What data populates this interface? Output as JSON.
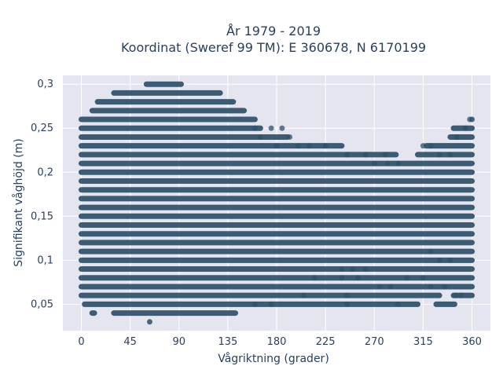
{
  "chart_data": {
    "type": "scatter",
    "title_line1": "År 1979 - 2019",
    "title_line2": "Koordinat (Sweref 99 TM): E 360678, N 6170199",
    "xlabel": "Vågriktning (grader)",
    "ylabel": "Signifikant våghöjd (m)",
    "xlim": [
      -17,
      377
    ],
    "ylim": [
      0.02,
      0.31
    ],
    "x_ticks": [
      0,
      45,
      90,
      135,
      180,
      225,
      270,
      315,
      360
    ],
    "x_tick_labels": [
      "0",
      "45",
      "90",
      "135",
      "180",
      "225",
      "270",
      "315",
      "360"
    ],
    "y_ticks": [
      0.05,
      0.1,
      0.15,
      0.2,
      0.25,
      0.3
    ],
    "y_tick_labels": [
      "0,05",
      "0,1",
      "0,15",
      "0,2",
      "0,25",
      "0,3"
    ],
    "grid": true,
    "legend": "none",
    "colors": {
      "marker": "#2e5068",
      "plot_bg": "#e5e5f0",
      "grid": "#ffffff",
      "text": "#2a3f5f"
    },
    "bands": [
      {
        "y": 0.03,
        "ranges": [
          [
            63,
            63
          ]
        ]
      },
      {
        "y": 0.04,
        "ranges": [
          [
            10,
            12
          ],
          [
            30,
            142
          ]
        ]
      },
      {
        "y": 0.05,
        "ranges": [
          [
            3,
            310
          ],
          [
            327,
            344
          ]
        ]
      },
      {
        "y": 0.06,
        "ranges": [
          [
            0,
            330
          ],
          [
            343,
            360
          ]
        ]
      },
      {
        "y": 0.07,
        "ranges": [
          [
            0,
            360
          ]
        ]
      },
      {
        "y": 0.08,
        "ranges": [
          [
            0,
            360
          ]
        ]
      },
      {
        "y": 0.09,
        "ranges": [
          [
            0,
            360
          ]
        ]
      },
      {
        "y": 0.1,
        "ranges": [
          [
            0,
            360
          ]
        ]
      },
      {
        "y": 0.11,
        "ranges": [
          [
            0,
            360
          ]
        ]
      },
      {
        "y": 0.12,
        "ranges": [
          [
            0,
            360
          ]
        ]
      },
      {
        "y": 0.13,
        "ranges": [
          [
            0,
            360
          ]
        ]
      },
      {
        "y": 0.14,
        "ranges": [
          [
            0,
            360
          ]
        ]
      },
      {
        "y": 0.15,
        "ranges": [
          [
            0,
            360
          ]
        ]
      },
      {
        "y": 0.16,
        "ranges": [
          [
            0,
            360
          ]
        ]
      },
      {
        "y": 0.17,
        "ranges": [
          [
            0,
            360
          ]
        ]
      },
      {
        "y": 0.18,
        "ranges": [
          [
            0,
            360
          ]
        ]
      },
      {
        "y": 0.19,
        "ranges": [
          [
            0,
            360
          ]
        ]
      },
      {
        "y": 0.2,
        "ranges": [
          [
            0,
            360
          ]
        ]
      },
      {
        "y": 0.21,
        "ranges": [
          [
            0,
            360
          ]
        ]
      },
      {
        "y": 0.22,
        "ranges": [
          [
            0,
            290
          ],
          [
            310,
            360
          ]
        ]
      },
      {
        "y": 0.23,
        "ranges": [
          [
            0,
            240
          ],
          [
            318,
            360
          ]
        ]
      },
      {
        "y": 0.24,
        "ranges": [
          [
            0,
            190
          ],
          [
            340,
            360
          ]
        ]
      },
      {
        "y": 0.25,
        "ranges": [
          [
            0,
            165
          ],
          [
            343,
            360
          ]
        ]
      },
      {
        "y": 0.26,
        "ranges": [
          [
            0,
            160
          ],
          [
            360,
            360
          ]
        ]
      },
      {
        "y": 0.27,
        "ranges": [
          [
            10,
            150
          ]
        ]
      },
      {
        "y": 0.28,
        "ranges": [
          [
            15,
            140
          ]
        ]
      },
      {
        "y": 0.29,
        "ranges": [
          [
            30,
            128
          ]
        ]
      },
      {
        "y": 0.3,
        "ranges": [
          [
            60,
            92
          ]
        ]
      }
    ],
    "outlier_points": [
      {
        "x": 160,
        "y": 0.25
      },
      {
        "x": 175,
        "y": 0.25
      },
      {
        "x": 185,
        "y": 0.25
      },
      {
        "x": 165,
        "y": 0.24
      },
      {
        "x": 192,
        "y": 0.24
      },
      {
        "x": 180,
        "y": 0.23
      },
      {
        "x": 200,
        "y": 0.23
      },
      {
        "x": 210,
        "y": 0.23
      },
      {
        "x": 225,
        "y": 0.23
      },
      {
        "x": 245,
        "y": 0.22
      },
      {
        "x": 262,
        "y": 0.22
      },
      {
        "x": 280,
        "y": 0.22
      },
      {
        "x": 270,
        "y": 0.21
      },
      {
        "x": 282,
        "y": 0.21
      },
      {
        "x": 292,
        "y": 0.21
      },
      {
        "x": 315,
        "y": 0.23
      },
      {
        "x": 322,
        "y": 0.23
      },
      {
        "x": 330,
        "y": 0.22
      },
      {
        "x": 340,
        "y": 0.22
      },
      {
        "x": 346,
        "y": 0.24
      },
      {
        "x": 354,
        "y": 0.25
      },
      {
        "x": 358,
        "y": 0.26
      },
      {
        "x": 240,
        "y": 0.09
      },
      {
        "x": 250,
        "y": 0.09
      },
      {
        "x": 262,
        "y": 0.09
      },
      {
        "x": 215,
        "y": 0.08
      },
      {
        "x": 240,
        "y": 0.08
      },
      {
        "x": 255,
        "y": 0.08
      },
      {
        "x": 300,
        "y": 0.08
      },
      {
        "x": 315,
        "y": 0.08
      },
      {
        "x": 205,
        "y": 0.06
      },
      {
        "x": 245,
        "y": 0.06
      },
      {
        "x": 275,
        "y": 0.07
      },
      {
        "x": 285,
        "y": 0.07
      },
      {
        "x": 322,
        "y": 0.07
      },
      {
        "x": 335,
        "y": 0.07
      },
      {
        "x": 345,
        "y": 0.06
      },
      {
        "x": 350,
        "y": 0.06
      },
      {
        "x": 160,
        "y": 0.05
      },
      {
        "x": 175,
        "y": 0.05
      },
      {
        "x": 245,
        "y": 0.05
      },
      {
        "x": 292,
        "y": 0.05
      },
      {
        "x": 330,
        "y": 0.1
      },
      {
        "x": 340,
        "y": 0.1
      },
      {
        "x": 322,
        "y": 0.11
      }
    ]
  }
}
